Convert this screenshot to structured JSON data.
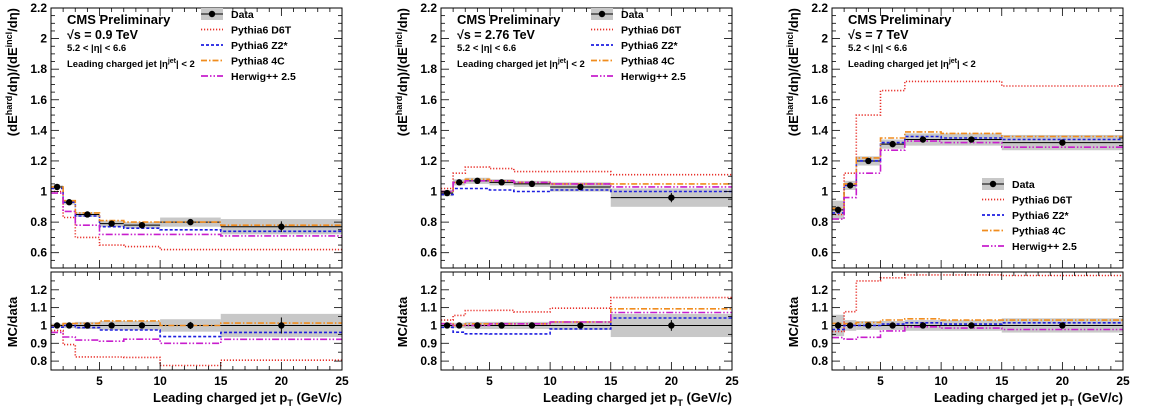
{
  "style": {
    "colors": {
      "data": "#000000",
      "band": "#c8c8c8",
      "Pythia6 D6T": "#e8302a",
      "Pythia6 Z2*": "#1f1fe0",
      "Pythia8 4C": "#f08c1e",
      "Herwig++ 2.5": "#c81ecd"
    },
    "dash": {
      "Pythia6 D6T": "1.2,1.8",
      "Pythia6 Z2*": "3,2",
      "Pythia8 4C": "6,2,1.5,2",
      "Herwig++ 2.5": "7,2,1.5,2,1.5,2"
    }
  },
  "chart_data": [
    {
      "type": "line",
      "header": {
        "title": "CMS Preliminary",
        "energy_prefix": "√s",
        "energy": " = 0.9 TeV",
        "eta_range": "5.2 < |η| < 6.6",
        "selection": "Leading charged jet |η",
        "selection_sup": "jet",
        "selection_end": "| < 2"
      },
      "legend": {
        "position": "top-right",
        "entries": [
          "Data",
          "Pythia6 D6T",
          "Pythia6 Z2*",
          "Pythia8 4C",
          "Herwig++ 2.5"
        ]
      },
      "ylabel_top": "(dE^hard/dη)/(dE^incl/dη)",
      "ylabel_bottom": "MC/data",
      "xlabel": "Leading charged jet p_T (GeV/c)",
      "xlim": [
        1,
        25
      ],
      "ylim_top": [
        0.5,
        2.2
      ],
      "ylim_bottom": [
        0.75,
        1.3
      ],
      "x_ticks": [
        "5",
        "10",
        "15",
        "20",
        "25"
      ],
      "y_ticks_top": [
        "0.6",
        "0.8",
        "1",
        "1.2",
        "1.4",
        "1.6",
        "1.8",
        "2",
        "2.2"
      ],
      "y_ticks_bottom": [
        "0.8",
        "0.9",
        "1",
        "1.1",
        "1.2"
      ],
      "bin_edges": [
        1,
        2,
        3,
        5,
        7,
        10,
        15,
        25
      ],
      "data": {
        "x": [
          1.5,
          2.5,
          4,
          6,
          8.5,
          12.5,
          20
        ],
        "y": [
          1.03,
          0.93,
          0.85,
          0.79,
          0.78,
          0.8,
          0.77
        ],
        "err": [
          0.01,
          0.015,
          0.015,
          0.015,
          0.015,
          0.015,
          0.035
        ],
        "band": [
          0.01,
          0.015,
          0.015,
          0.02,
          0.02,
          0.03,
          0.05
        ]
      },
      "series": [
        {
          "name": "Pythia6 D6T",
          "values": [
            1.0,
            0.83,
            0.7,
            0.65,
            0.64,
            0.62,
            0.62
          ]
        },
        {
          "name": "Pythia6 Z2*",
          "values": [
            1.02,
            0.93,
            0.84,
            0.77,
            0.76,
            0.75,
            0.74
          ]
        },
        {
          "name": "Pythia8 4C",
          "values": [
            1.03,
            0.94,
            0.86,
            0.81,
            0.8,
            0.8,
            0.78
          ]
        },
        {
          "name": "Herwig++ 2.5",
          "values": [
            0.99,
            0.87,
            0.78,
            0.72,
            0.72,
            0.72,
            0.71
          ]
        }
      ],
      "ratio_band": [
        0.01,
        0.015,
        0.02,
        0.025,
        0.025,
        0.035,
        0.065
      ],
      "ratio_err": [
        0.005,
        0.005,
        0.01,
        0.01,
        0.015,
        0.02,
        0.045
      ]
    },
    {
      "type": "line",
      "header": {
        "title": "CMS Preliminary",
        "energy_prefix": "√s",
        "energy": " = 2.76 TeV",
        "eta_range": "5.2 < |η| < 6.6",
        "selection": "Leading charged jet |η",
        "selection_sup": "jet",
        "selection_end": "| < 2"
      },
      "legend": {
        "position": "top-right",
        "entries": [
          "Data",
          "Pythia6 D6T",
          "Pythia6 Z2*",
          "Pythia8 4C",
          "Herwig++ 2.5"
        ]
      },
      "ylabel_top": "(dE^hard/dη)/(dE^incl/dη)",
      "ylabel_bottom": "MC/data",
      "xlabel": "Leading charged jet p_T (GeV/c)",
      "xlim": [
        1,
        25
      ],
      "ylim_top": [
        0.5,
        2.2
      ],
      "ylim_bottom": [
        0.75,
        1.3
      ],
      "x_ticks": [
        "5",
        "10",
        "15",
        "20",
        "25"
      ],
      "y_ticks_top": [
        "0.6",
        "0.8",
        "1",
        "1.2",
        "1.4",
        "1.6",
        "1.8",
        "2",
        "2.2"
      ],
      "y_ticks_bottom": [
        "0.8",
        "0.9",
        "1",
        "1.1",
        "1.2"
      ],
      "bin_edges": [
        1,
        2,
        3,
        5,
        7,
        10,
        15,
        25
      ],
      "data": {
        "x": [
          1.5,
          2.5,
          4,
          6,
          8.5,
          12.5,
          20
        ],
        "y": [
          0.99,
          1.06,
          1.07,
          1.06,
          1.05,
          1.03,
          0.96
        ],
        "err": [
          0.01,
          0.01,
          0.01,
          0.01,
          0.01,
          0.015,
          0.03
        ],
        "band": [
          0.02,
          0.02,
          0.02,
          0.02,
          0.02,
          0.03,
          0.06
        ]
      },
      "series": [
        {
          "name": "Pythia6 D6T",
          "values": [
            1.02,
            1.12,
            1.16,
            1.15,
            1.13,
            1.13,
            1.11
          ]
        },
        {
          "name": "Pythia6 Z2*",
          "values": [
            0.98,
            1.02,
            1.02,
            1.01,
            1.0,
            1.01,
            1.0
          ]
        },
        {
          "name": "Pythia8 4C",
          "values": [
            1.0,
            1.06,
            1.08,
            1.07,
            1.06,
            1.05,
            1.05
          ]
        },
        {
          "name": "Herwig++ 2.5",
          "values": [
            1.0,
            1.06,
            1.07,
            1.07,
            1.06,
            1.05,
            1.03
          ]
        }
      ],
      "ratio_band": [
        0.015,
        0.015,
        0.02,
        0.02,
        0.02,
        0.025,
        0.065
      ],
      "ratio_err": [
        0.01,
        0.01,
        0.01,
        0.01,
        0.01,
        0.015,
        0.03
      ]
    },
    {
      "type": "line",
      "header": {
        "title": "CMS Preliminary",
        "energy_prefix": "√s",
        "energy": " = 7 TeV",
        "eta_range": "5.2 < |η| < 6.6",
        "selection": "Leading charged jet |η",
        "selection_sup": "jet",
        "selection_end": "| < 2"
      },
      "legend": {
        "position": "center-right",
        "entries": [
          "Data",
          "Pythia6 D6T",
          "Pythia6 Z2*",
          "Pythia8 4C",
          "Herwig++ 2.5"
        ]
      },
      "ylabel_top": "(dE^hard/dη)/(dE^incl/dη)",
      "ylabel_bottom": "MC/data",
      "xlabel": "Leading charged jet p_T (GeV/c)",
      "xlim": [
        1,
        25
      ],
      "ylim_top": [
        0.5,
        2.2
      ],
      "ylim_bottom": [
        0.75,
        1.3
      ],
      "x_ticks": [
        "5",
        "10",
        "15",
        "20",
        "25"
      ],
      "y_ticks_top": [
        "0.6",
        "0.8",
        "1",
        "1.2",
        "1.4",
        "1.6",
        "1.8",
        "2",
        "2.2"
      ],
      "y_ticks_bottom": [
        "0.8",
        "0.9",
        "1",
        "1.1",
        "1.2"
      ],
      "bin_edges": [
        1,
        2,
        3,
        5,
        7,
        10,
        15,
        25
      ],
      "data": {
        "x": [
          1.5,
          2.5,
          4,
          6,
          8.5,
          12.5,
          20
        ],
        "y": [
          0.88,
          1.04,
          1.2,
          1.31,
          1.34,
          1.34,
          1.32
        ],
        "err": [
          0.02,
          0.015,
          0.015,
          0.015,
          0.015,
          0.015,
          0.02
        ],
        "band": [
          0.06,
          0.03,
          0.03,
          0.03,
          0.04,
          0.04,
          0.05
        ]
      },
      "series": [
        {
          "name": "Pythia6 D6T",
          "values": [
            0.85,
            1.12,
            1.5,
            1.66,
            1.72,
            1.72,
            1.69
          ]
        },
        {
          "name": "Pythia6 Z2*",
          "values": [
            0.86,
            1.04,
            1.2,
            1.32,
            1.36,
            1.35,
            1.34
          ]
        },
        {
          "name": "Pythia8 4C",
          "values": [
            0.89,
            1.05,
            1.22,
            1.35,
            1.39,
            1.38,
            1.36
          ]
        },
        {
          "name": "Herwig++ 2.5",
          "values": [
            0.82,
            0.96,
            1.12,
            1.27,
            1.33,
            1.32,
            1.29
          ]
        }
      ],
      "ratio_band": [
        0.06,
        0.03,
        0.025,
        0.025,
        0.03,
        0.03,
        0.04
      ],
      "ratio_err": [
        0.02,
        0.015,
        0.01,
        0.01,
        0.01,
        0.01,
        0.015
      ]
    }
  ]
}
